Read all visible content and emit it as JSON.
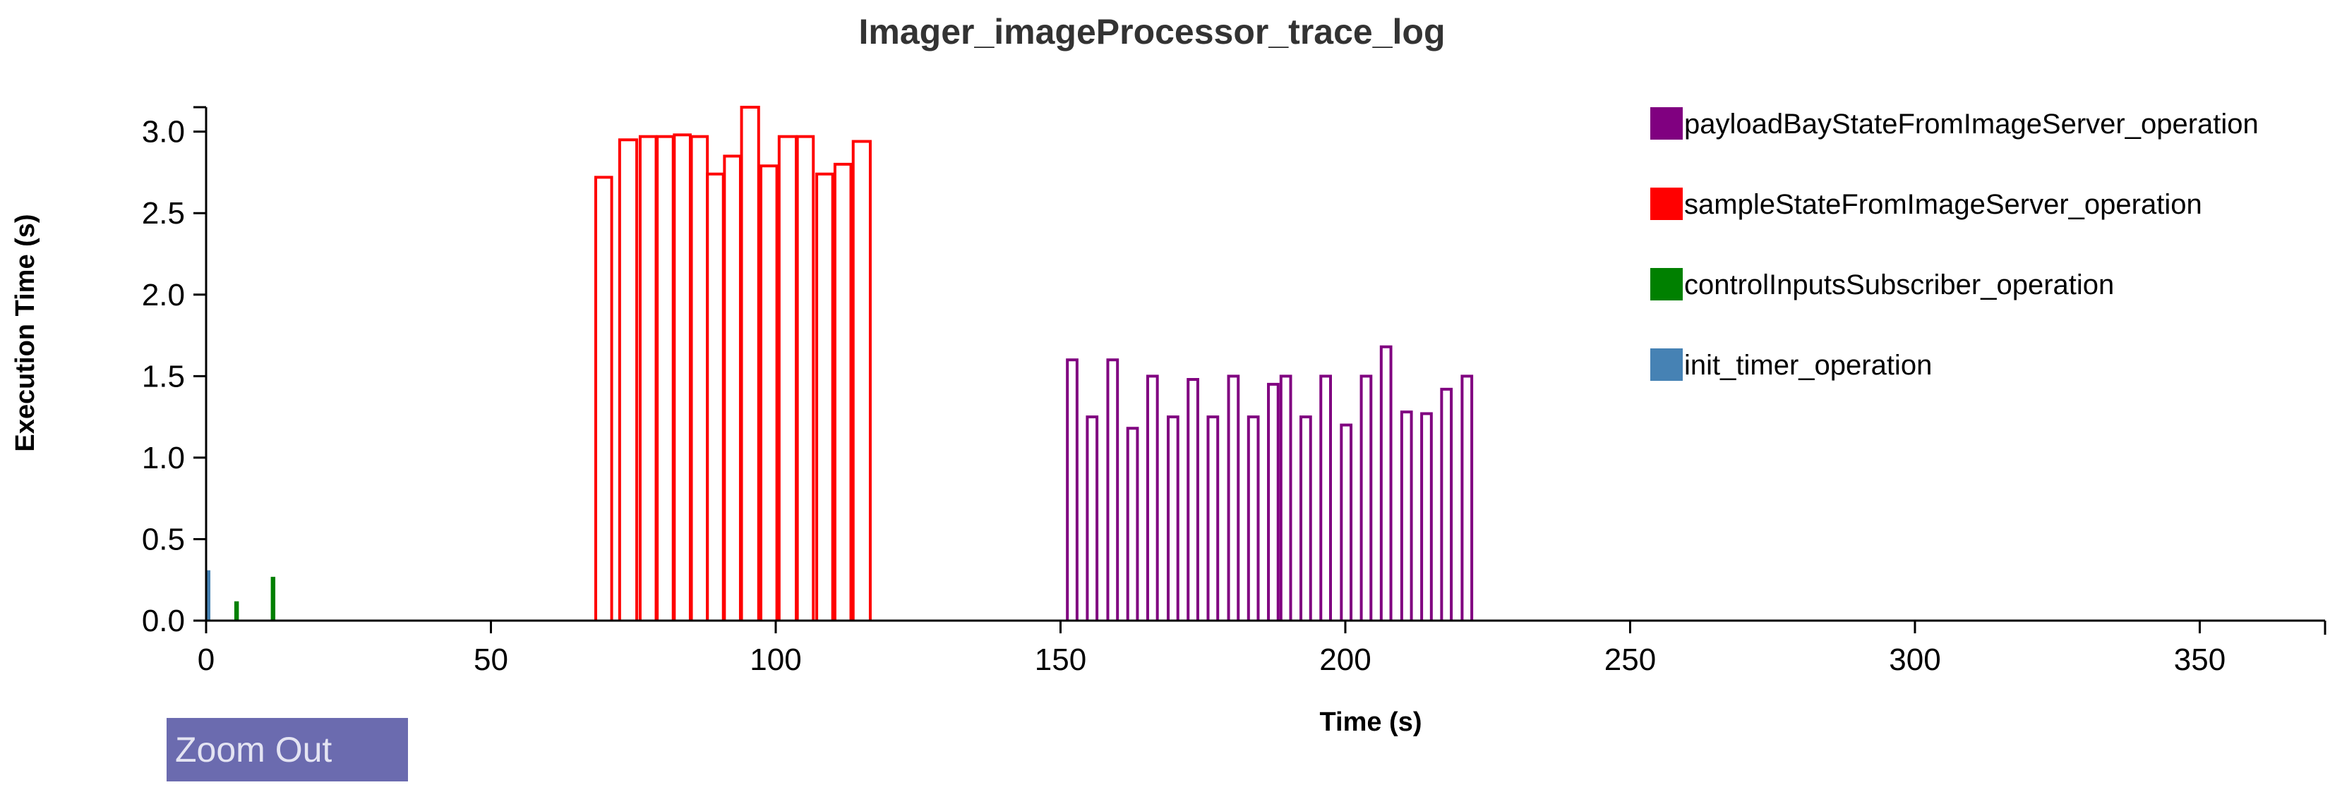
{
  "chart_data": {
    "type": "bar",
    "title": "Imager_imageProcessor_trace_log",
    "xlabel": "Time (s)",
    "ylabel": "Execution Time (s)",
    "xlim": [
      0,
      372
    ],
    "ylim": [
      0,
      3.15
    ],
    "x_ticks": [
      "0",
      "50",
      "100",
      "150",
      "200",
      "250",
      "300",
      "350"
    ],
    "y_ticks": [
      "0.0",
      "0.5",
      "1.0",
      "1.5",
      "2.0",
      "2.5",
      "3.0"
    ],
    "legend_position": "top-right",
    "series": [
      {
        "name": "payloadBayStateFromImageServer_operation",
        "color": "#800080",
        "bars": [
          {
            "x": [
              151.2,
              152.9
            ],
            "value": 1.6
          },
          {
            "x": [
              154.7,
              156.4
            ],
            "value": 1.25
          },
          {
            "x": [
              158.3,
              160.0
            ],
            "value": 1.6
          },
          {
            "x": [
              161.8,
              163.5
            ],
            "value": 1.18
          },
          {
            "x": [
              165.3,
              167.0
            ],
            "value": 1.5
          },
          {
            "x": [
              168.9,
              170.6
            ],
            "value": 1.25
          },
          {
            "x": [
              172.4,
              174.1
            ],
            "value": 1.48
          },
          {
            "x": [
              175.9,
              177.6
            ],
            "value": 1.25
          },
          {
            "x": [
              179.5,
              181.2
            ],
            "value": 1.5
          },
          {
            "x": [
              183.0,
              184.7
            ],
            "value": 1.25
          },
          {
            "x": [
              186.5,
              188.2
            ],
            "value": 1.45
          },
          {
            "x": [
              188.7,
              190.4
            ],
            "value": 1.5
          },
          {
            "x": [
              192.2,
              193.9
            ],
            "value": 1.25
          },
          {
            "x": [
              195.7,
              197.4
            ],
            "value": 1.5
          },
          {
            "x": [
              199.3,
              201.0
            ],
            "value": 1.2
          },
          {
            "x": [
              202.8,
              204.5
            ],
            "value": 1.5
          },
          {
            "x": [
              206.3,
              208.0
            ],
            "value": 1.68
          },
          {
            "x": [
              209.9,
              211.6
            ],
            "value": 1.28
          },
          {
            "x": [
              213.4,
              215.1
            ],
            "value": 1.27
          },
          {
            "x": [
              216.9,
              218.6
            ],
            "value": 1.42
          },
          {
            "x": [
              220.5,
              222.2
            ],
            "value": 1.5
          }
        ]
      },
      {
        "name": "sampleStateFromImageServer_operation",
        "color": "#ff0000",
        "bars": [
          {
            "x": [
              68.4,
              71.2
            ],
            "value": 2.72
          },
          {
            "x": [
              72.6,
              75.6
            ],
            "value": 2.95
          },
          {
            "x": [
              76.2,
              79.0
            ],
            "value": 2.97
          },
          {
            "x": [
              79.2,
              82.0
            ],
            "value": 2.97
          },
          {
            "x": [
              82.2,
              85.0
            ],
            "value": 2.98
          },
          {
            "x": [
              85.2,
              88.0
            ],
            "value": 2.97
          },
          {
            "x": [
              88.0,
              90.8
            ],
            "value": 2.74
          },
          {
            "x": [
              91.0,
              93.8
            ],
            "value": 2.85
          },
          {
            "x": [
              94.0,
              97.0
            ],
            "value": 3.15
          },
          {
            "x": [
              97.4,
              100.2
            ],
            "value": 2.79
          },
          {
            "x": [
              100.6,
              103.6
            ],
            "value": 2.97
          },
          {
            "x": [
              103.8,
              106.6
            ],
            "value": 2.97
          },
          {
            "x": [
              107.2,
              110.0
            ],
            "value": 2.74
          },
          {
            "x": [
              110.4,
              113.2
            ],
            "value": 2.8
          },
          {
            "x": [
              113.6,
              116.6
            ],
            "value": 2.94
          }
        ]
      },
      {
        "name": "controlInputsSubscriber_operation",
        "color": "#008000",
        "bars": [
          {
            "x": [
              5.2,
              5.5
            ],
            "value": 0.11
          },
          {
            "x": [
              11.6,
              11.9
            ],
            "value": 0.26
          }
        ]
      },
      {
        "name": "init_timer_operation",
        "color": "#4682b4",
        "bars": [
          {
            "x": [
              0.2,
              0.5
            ],
            "value": 0.3
          }
        ]
      }
    ]
  },
  "controls": {
    "zoom_out_label": "Zoom Out"
  }
}
